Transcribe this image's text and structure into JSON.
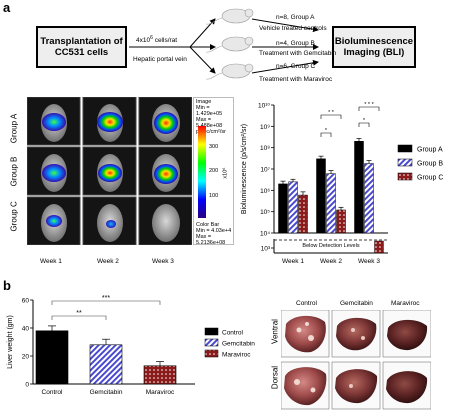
{
  "panel_a": {
    "letter": "a",
    "left_box": "Transplantation of CC531 cells",
    "arrow_label_cells": "4x10",
    "arrow_label_cells_exp": "6",
    "arrow_label_cells_suffix": " cells/rat",
    "arrow_label_route": "Hepatic portal vein",
    "groups": [
      {
        "n": "n=8, Group A",
        "treatment": "Vehicle treated controls"
      },
      {
        "n": "n=4, Group B",
        "treatment": "Treatment with Gemcitabin"
      },
      {
        "n": "n=6, Group C",
        "treatment": "Treatment with Maraviroc"
      }
    ],
    "right_box": "Bioluminescence Imaging (BLI)"
  },
  "imaging": {
    "row_labels": [
      "Group A",
      "Group B",
      "Group C"
    ],
    "col_labels": [
      "Week 1",
      "Week 2",
      "Week 3"
    ],
    "colorbar_top_text": [
      "Image",
      "Min = 1.429e+05",
      "Max = 5.488e+08",
      "p/sec/cm²/sr"
    ],
    "colorbar_ticks": [
      "300",
      "200",
      "100"
    ],
    "colorbar_unit": "x10⁶",
    "colorbar_bottom_text": [
      "Color Bar",
      "Min = 4.03e+4",
      "Max = 5.2136e+08"
    ]
  },
  "legend_colors": {
    "group_a": "#000000",
    "group_b": "#4a4ad0",
    "group_c": "#8b1a1a"
  },
  "chart_data": [
    {
      "type": "bar",
      "title": "",
      "ylabel": "Bioluminescence (p/s/cm²/sr)",
      "yscale": "log",
      "ylim": [
        10000.0,
        10000000000.0
      ],
      "yticks": [
        "10⁴",
        "10⁵",
        "10⁶",
        "10⁷",
        "10⁸",
        "10⁹",
        "10¹⁰"
      ],
      "extra_tick": "10³",
      "below_detection_label": "Below Detection Levels",
      "categories": [
        "Week 1",
        "Week 2",
        "Week 3"
      ],
      "series": [
        {
          "name": "Group A",
          "values": [
            2000000,
            30000000,
            200000000
          ],
          "errors": [
            700000,
            10000000,
            70000000
          ]
        },
        {
          "name": "Group B",
          "values": [
            2500000,
            6000000,
            18000000
          ],
          "errors": [
            800000,
            2500000,
            7000000
          ]
        },
        {
          "name": "Group C",
          "values": [
            600000,
            120000,
            null
          ],
          "errors": [
            250000,
            40000,
            null
          ]
        }
      ],
      "significance": [
        {
          "week": "Week 2",
          "pair": [
            "Group A",
            "Group C"
          ],
          "label": "* *"
        },
        {
          "week": "Week 2",
          "pair": [
            "Group A",
            "Group B"
          ],
          "label": "*"
        },
        {
          "week": "Week 3",
          "pair": [
            "Group A",
            "Group C"
          ],
          "label": "* * *"
        },
        {
          "week": "Week 3",
          "pair": [
            "Group A",
            "Group B"
          ],
          "label": "*"
        }
      ],
      "legend_position": "right"
    },
    {
      "type": "bar",
      "title": "",
      "ylabel": "Liver weight (gm)",
      "ylim": [
        0,
        60
      ],
      "yticks": [
        "0",
        "20",
        "40",
        "60"
      ],
      "categories": [
        "Control",
        "Gemcitabin",
        "Maraviroc"
      ],
      "values": [
        38,
        28,
        13
      ],
      "errors": [
        3.5,
        4,
        3
      ],
      "significance": [
        {
          "pair": [
            "Control",
            "Gemcitabin"
          ],
          "label": "**"
        },
        {
          "pair": [
            "Control",
            "Maraviroc"
          ],
          "label": "***"
        }
      ],
      "legend": [
        "Control",
        "Gemcitabin",
        "Maraviroc"
      ],
      "legend_position": "right"
    }
  ],
  "panel_b": {
    "letter": "b",
    "photo_cols": [
      "Control",
      "Gemcitabin",
      "Maraviroc"
    ],
    "photo_rows": [
      "Ventral",
      "Dorsal"
    ]
  }
}
